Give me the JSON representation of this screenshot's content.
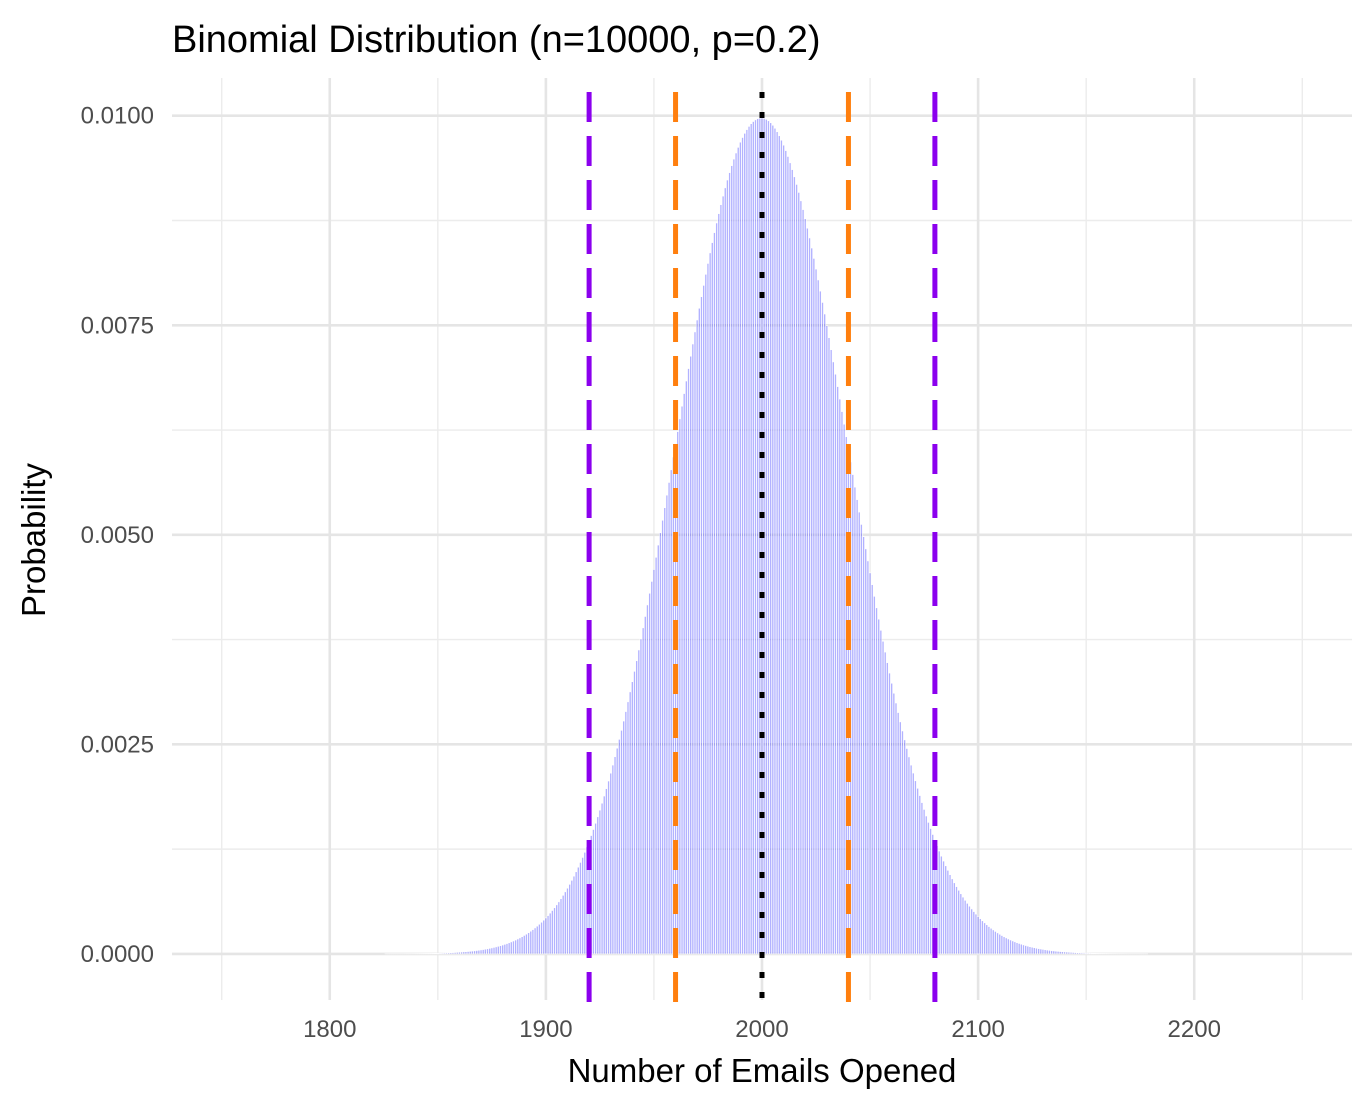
{
  "chart_data": {
    "type": "bar",
    "title": "Binomial Distribution (n=10000, p=0.2)",
    "xlabel": "Number of Emails Opened",
    "ylabel": "Probability",
    "distribution": {
      "family": "binomial",
      "n": 10000,
      "p": 0.2
    },
    "x_range_plotted": [
      1750,
      2250
    ],
    "xlim": [
      1727,
      2273
    ],
    "ylim": [
      -0.00055,
      0.01045
    ],
    "x_ticks": [
      {
        "value": 1800,
        "label": "1800"
      },
      {
        "value": 1900,
        "label": "1900"
      },
      {
        "value": 2000,
        "label": "2000"
      },
      {
        "value": 2100,
        "label": "2100"
      },
      {
        "value": 2200,
        "label": "2200"
      }
    ],
    "x_minor_ticks": [
      1750,
      1850,
      1950,
      2050,
      2150,
      2250
    ],
    "y_ticks": [
      {
        "value": 0.0,
        "label": "0.0000"
      },
      {
        "value": 0.0025,
        "label": "0.0025"
      },
      {
        "value": 0.005,
        "label": "0.0050"
      },
      {
        "value": 0.0075,
        "label": "0.0075"
      },
      {
        "value": 0.01,
        "label": "0.0100"
      }
    ],
    "y_minor_ticks": [
      0.00125,
      0.00375,
      0.00625,
      0.00875
    ],
    "reference_lines": [
      {
        "x": 2000,
        "style": "dotted",
        "color": "#000000"
      },
      {
        "x": 1960,
        "style": "dashed",
        "color": "#ff7f0e"
      },
      {
        "x": 2040,
        "style": "dashed",
        "color": "#ff7f0e"
      },
      {
        "x": 1920,
        "style": "dashed",
        "color": "#8b00ee"
      },
      {
        "x": 2080,
        "style": "dashed",
        "color": "#8b00ee"
      }
    ],
    "bar_color": "#0000ff",
    "bar_opacity": 0.3,
    "grid": true,
    "legend": "none"
  }
}
